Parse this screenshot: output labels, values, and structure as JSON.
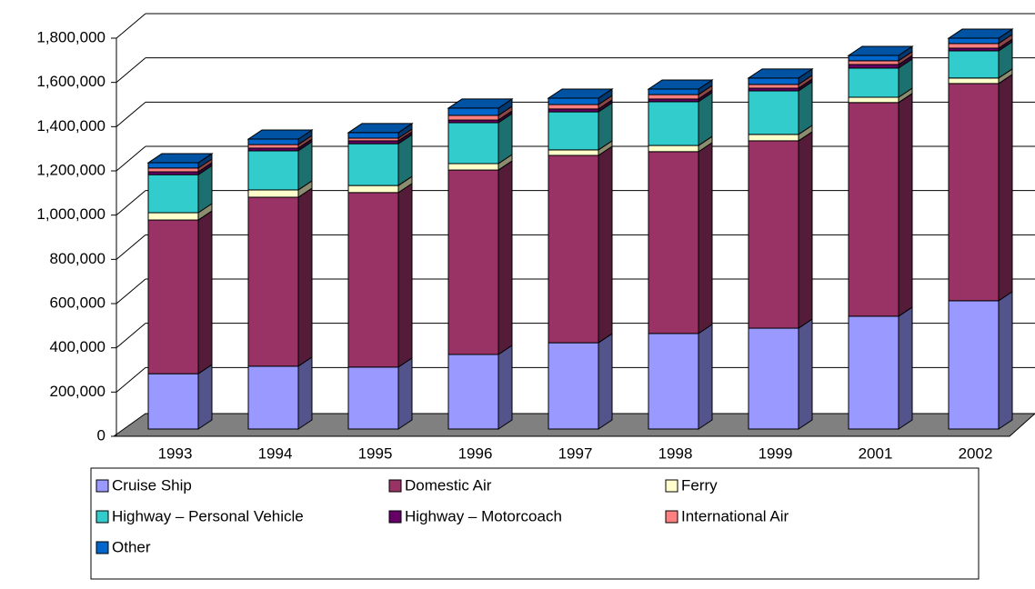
{
  "chart_data": {
    "type": "bar",
    "stacked": true,
    "categories": [
      "1993",
      "1994",
      "1995",
      "1996",
      "1997",
      "1998",
      "1999",
      "2001",
      "2002"
    ],
    "series": [
      {
        "name": "Cruise Ship",
        "color": "#9999ff",
        "values": [
          250000,
          284000,
          280000,
          337000,
          390000,
          432000,
          456000,
          510000,
          580000
        ]
      },
      {
        "name": "Domestic Air",
        "color": "#993366",
        "values": [
          695000,
          764000,
          789000,
          834000,
          847000,
          822000,
          847000,
          966000,
          982000
        ]
      },
      {
        "name": "Ferry",
        "color": "#ffffcc",
        "values": [
          33000,
          33000,
          32000,
          29000,
          25000,
          28000,
          29000,
          24000,
          25000
        ]
      },
      {
        "name": "Highway – Personal Vehicle",
        "color": "#33cccc",
        "values": [
          172000,
          177000,
          189000,
          185000,
          172000,
          198000,
          197000,
          132000,
          123000
        ]
      },
      {
        "name": "Highway – Motorcoach",
        "color": "#660066",
        "values": [
          13000,
          12000,
          13000,
          12000,
          13000,
          12000,
          12000,
          16000,
          12000
        ]
      },
      {
        "name": "International Air",
        "color": "#ff8080",
        "values": [
          17000,
          16000,
          12000,
          21000,
          20000,
          20000,
          17000,
          17000,
          21000
        ]
      },
      {
        "name": "Other",
        "color": "#0066cc",
        "values": [
          24000,
          25000,
          25000,
          33000,
          29000,
          25000,
          29000,
          24000,
          24000
        ]
      }
    ],
    "ylim": [
      0,
      1800000
    ],
    "yticks": [
      0,
      {
        "value": 200000,
        "label": "200,000"
      },
      {
        "value": 400000,
        "label": "400,000"
      },
      {
        "value": 600000,
        "label": "600,000"
      },
      {
        "value": 800000,
        "label": "800,000"
      },
      {
        "value": 1000000,
        "label": "1,000,000"
      },
      {
        "value": 1200000,
        "label": "1,200,000"
      },
      {
        "value": 1400000,
        "label": "1,400,000"
      },
      {
        "value": 1600000,
        "label": "1,600,000"
      },
      {
        "value": 1800000,
        "label": "1,800,000"
      }
    ],
    "grid": true,
    "legend": "bottom"
  }
}
